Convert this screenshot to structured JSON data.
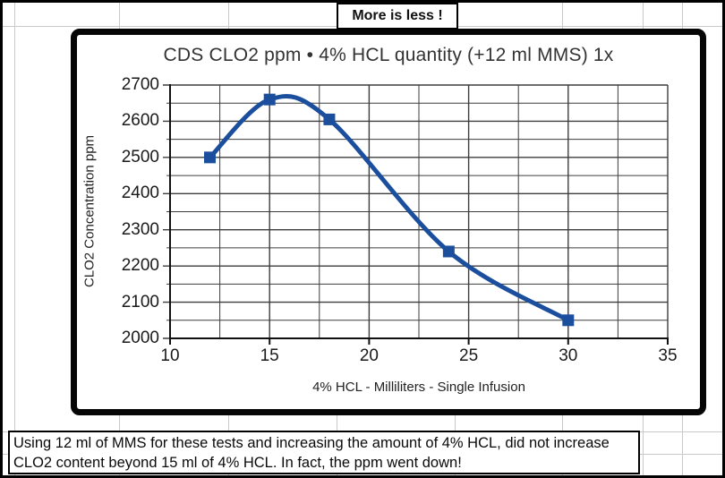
{
  "header": {
    "label": "More is less !"
  },
  "note": {
    "line1": "Using 12 ml of MMS for these tests and increasing the amount of 4% HCL, did not increase",
    "line2": "CLO2 content beyond 15 ml of 4% HCL. In fact, the ppm went down!"
  },
  "chart_data": {
    "type": "line",
    "title": "CDS CLO2 ppm • 4% HCL quantity (+12 ml MMS) 1x",
    "xlabel": "4% HCL - Milliliters - Single Infusion",
    "ylabel": "CLO2 Concentration ppm",
    "x": [
      12,
      15,
      18,
      24,
      30
    ],
    "y": [
      2500,
      2660,
      2605,
      2240,
      2050
    ],
    "xlim": [
      10,
      35
    ],
    "ylim": [
      2000,
      2700
    ],
    "x_major_ticks": [
      10,
      15,
      20,
      25,
      30,
      35
    ],
    "y_major_ticks": [
      2000,
      2100,
      2200,
      2300,
      2400,
      2500,
      2600,
      2700
    ],
    "x_minor_step": 2.5,
    "y_minor_step": 50,
    "grid": "minor-both-directions",
    "legend": "none",
    "smooth_line": true,
    "marker": "square",
    "line_color": "#1b4f9e",
    "marker_color": "#1b4f9e",
    "grid_color": "#3d3d3d",
    "axis_color": "#111111"
  }
}
